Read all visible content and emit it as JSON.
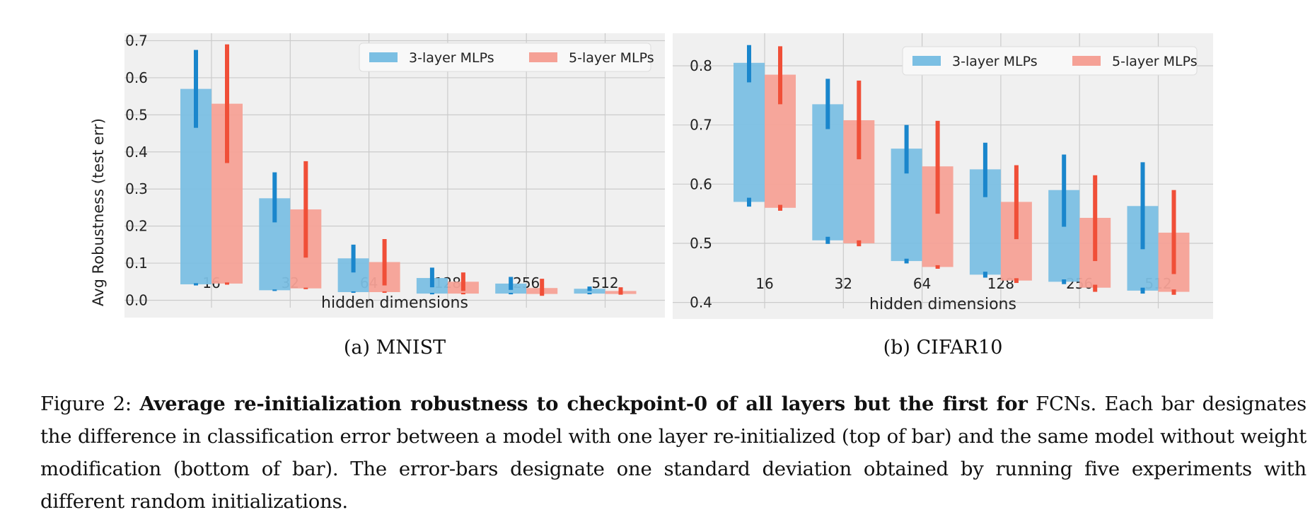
{
  "figure": {
    "caption": {
      "label": "Figure 2:",
      "bold_title": "Average re-initialization robustness to checkpoint-0 of all layers but the first for",
      "subject": "FCNs.",
      "body": "Each bar designates the difference in classification error between a model with one layer re-initialized (top of bar) and the same model without weight modification (bottom of bar). The error-bars designate one standard deviation obtained by running five experiments with different random initializations."
    }
  },
  "chart_data": [
    {
      "type": "bar",
      "subcaption": "(a) MNIST",
      "xlabel": "hidden dimensions",
      "ylabel": "Avg Robustness (test err)",
      "categories": [
        "16",
        "32",
        "64",
        "128",
        "256",
        "512"
      ],
      "ylim": [
        -0.02,
        0.72
      ],
      "yticks": [
        "0.0",
        "0.1",
        "0.2",
        "0.3",
        "0.4",
        "0.5",
        "0.6",
        "0.7"
      ],
      "grid": true,
      "legend": "top-right",
      "series": [
        {
          "name": "3-layer MLPs",
          "color": "#7bbfe3",
          "errcolor": "#1a86cc",
          "bottom": [
            0.043,
            0.027,
            0.022,
            0.018,
            0.018,
            0.018
          ],
          "top": [
            0.57,
            0.275,
            0.113,
            0.06,
            0.045,
            0.031
          ],
          "err_top": [
            [
              0.465,
              0.675
            ],
            [
              0.21,
              0.345
            ],
            [
              0.075,
              0.15
            ],
            [
              0.035,
              0.088
            ],
            [
              0.028,
              0.063
            ],
            [
              0.025,
              0.037
            ]
          ],
          "err_bottom": [
            [
              0.04,
              0.046
            ],
            [
              0.025,
              0.029
            ],
            [
              0.02,
              0.024
            ],
            [
              0.016,
              0.02
            ],
            [
              0.016,
              0.02
            ],
            [
              0.016,
              0.02
            ]
          ]
        },
        {
          "name": "5-layer MLPs",
          "color": "#f5a196",
          "errcolor": "#f04f38",
          "bottom": [
            0.045,
            0.032,
            0.022,
            0.018,
            0.017,
            0.017
          ],
          "top": [
            0.53,
            0.245,
            0.103,
            0.05,
            0.033,
            0.025
          ],
          "err_top": [
            [
              0.37,
              0.69
            ],
            [
              0.115,
              0.375
            ],
            [
              0.04,
              0.165
            ],
            [
              0.025,
              0.075
            ],
            [
              0.012,
              0.058
            ],
            [
              0.018,
              0.035
            ]
          ],
          "err_bottom": [
            [
              0.042,
              0.048
            ],
            [
              0.03,
              0.034
            ],
            [
              0.02,
              0.024
            ],
            [
              0.016,
              0.02
            ],
            [
              0.015,
              0.019
            ],
            [
              0.015,
              0.019
            ]
          ]
        }
      ]
    },
    {
      "type": "bar",
      "subcaption": "(b) CIFAR10",
      "xlabel": "hidden dimensions",
      "ylabel": "",
      "categories": [
        "16",
        "32",
        "64",
        "128",
        "256",
        "512"
      ],
      "ylim": [
        0.39,
        0.855
      ],
      "yticks": [
        "0.4",
        "0.5",
        "0.6",
        "0.7",
        "0.8"
      ],
      "grid": true,
      "legend": "top-right",
      "series": [
        {
          "name": "3-layer MLPs",
          "color": "#7bbfe3",
          "errcolor": "#1a86cc",
          "bottom": [
            0.57,
            0.505,
            0.47,
            0.447,
            0.435,
            0.42
          ],
          "top": [
            0.805,
            0.735,
            0.66,
            0.625,
            0.59,
            0.563
          ],
          "err_top": [
            [
              0.772,
              0.835
            ],
            [
              0.693,
              0.778
            ],
            [
              0.618,
              0.7
            ],
            [
              0.578,
              0.67
            ],
            [
              0.528,
              0.65
            ],
            [
              0.49,
              0.637
            ]
          ],
          "err_bottom": [
            [
              0.562,
              0.577
            ],
            [
              0.499,
              0.511
            ],
            [
              0.466,
              0.474
            ],
            [
              0.442,
              0.452
            ],
            [
              0.431,
              0.439
            ],
            [
              0.415,
              0.425
            ]
          ]
        },
        {
          "name": "5-layer MLPs",
          "color": "#f5a196",
          "errcolor": "#f04f38",
          "bottom": [
            0.56,
            0.5,
            0.46,
            0.437,
            0.425,
            0.418
          ],
          "top": [
            0.785,
            0.708,
            0.63,
            0.57,
            0.543,
            0.518
          ],
          "err_top": [
            [
              0.735,
              0.833
            ],
            [
              0.642,
              0.775
            ],
            [
              0.55,
              0.707
            ],
            [
              0.507,
              0.632
            ],
            [
              0.47,
              0.615
            ],
            [
              0.448,
              0.59
            ]
          ],
          "err_bottom": [
            [
              0.555,
              0.565
            ],
            [
              0.495,
              0.505
            ],
            [
              0.457,
              0.463
            ],
            [
              0.433,
              0.441
            ],
            [
              0.418,
              0.43
            ],
            [
              0.413,
              0.422
            ]
          ]
        }
      ]
    }
  ]
}
